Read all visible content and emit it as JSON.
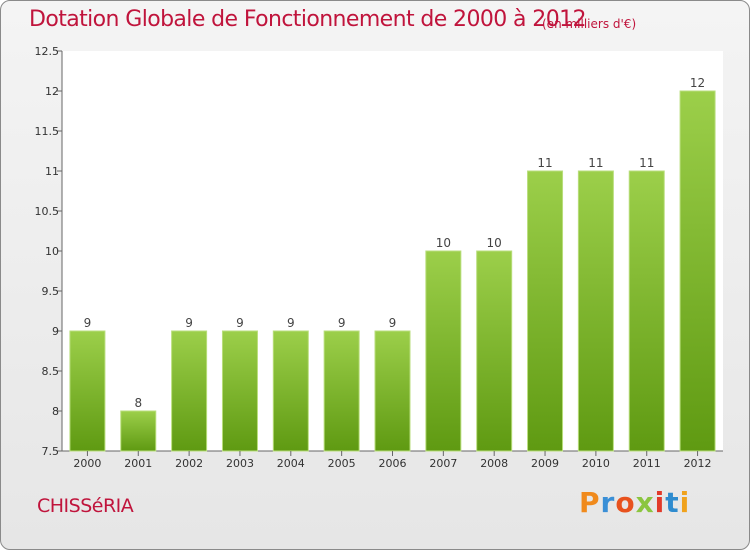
{
  "chart_data": {
    "type": "bar",
    "title": "Dotation Globale de Fonctionnement de 2000 à 2012",
    "subtitle": "(en milliers d'€)",
    "categories": [
      "2000",
      "2001",
      "2002",
      "2003",
      "2004",
      "2005",
      "2006",
      "2007",
      "2008",
      "2009",
      "2010",
      "2011",
      "2012"
    ],
    "values": [
      9,
      8,
      9,
      9,
      9,
      9,
      9,
      10,
      10,
      11,
      11,
      11,
      12
    ],
    "ylim": [
      7.5,
      12.5
    ],
    "yticks": [
      7.5,
      8,
      8.5,
      9,
      9.5,
      10,
      10.5,
      11,
      11.5,
      12,
      12.5
    ],
    "ytick_labels": [
      "7.5",
      "8",
      "8.5",
      "9",
      "9.5",
      "10",
      "10.5",
      "11",
      "11.5",
      "12",
      "12.5"
    ],
    "grid": false,
    "bar_color_top": "#9ccf4a",
    "bar_color_bottom": "#5f9a12"
  },
  "footer": {
    "commune": "CHISSéRIA",
    "logo": "Proxiti",
    "logo_colors": [
      "#f08a1c",
      "#3a8fd6",
      "#e8521e",
      "#8bc53f",
      "#e23a2a",
      "#2f8ccf",
      "#f0a21c"
    ]
  }
}
